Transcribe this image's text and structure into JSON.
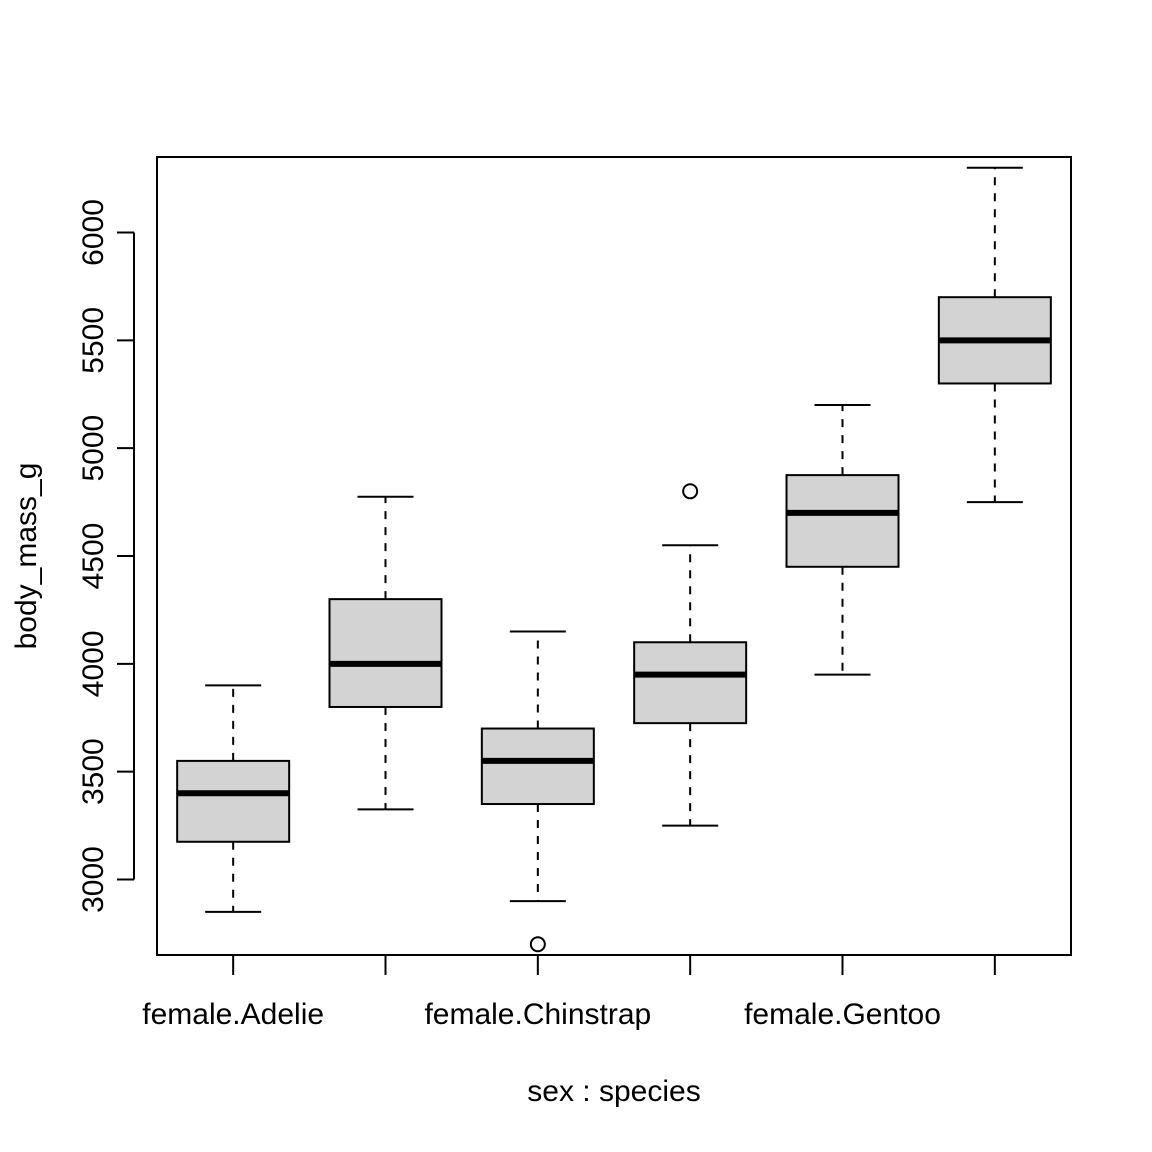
{
  "chart_data": {
    "type": "boxplot",
    "title": "",
    "xlabel": "sex : species",
    "ylabel": "body_mass_g",
    "ylim": [
      2650,
      6350
    ],
    "yticks": [
      3000,
      3500,
      4000,
      4500,
      5000,
      5500,
      6000
    ],
    "categories": [
      "female.Adelie",
      "",
      "female.Chinstrap",
      "",
      "female.Gentoo",
      ""
    ],
    "boxes": [
      {
        "whisker_low": 2850,
        "q1": 3175,
        "median": 3400,
        "q3": 3550,
        "whisker_high": 3900,
        "outliers": []
      },
      {
        "whisker_low": 3325,
        "q1": 3800,
        "median": 4000,
        "q3": 4300,
        "whisker_high": 4775,
        "outliers": []
      },
      {
        "whisker_low": 2900,
        "q1": 3350,
        "median": 3550,
        "q3": 3700,
        "whisker_high": 4150,
        "outliers": [
          2700
        ]
      },
      {
        "whisker_low": 3250,
        "q1": 3725,
        "median": 3950,
        "q3": 4100,
        "whisker_high": 4550,
        "outliers": [
          4800
        ]
      },
      {
        "whisker_low": 3950,
        "q1": 4450,
        "median": 4700,
        "q3": 4875,
        "whisker_high": 5200,
        "outliers": []
      },
      {
        "whisker_low": 4750,
        "q1": 5300,
        "median": 5500,
        "q3": 5700,
        "whisker_high": 6300,
        "outliers": []
      }
    ],
    "grid": false,
    "box_fill": "#d3d3d3"
  }
}
